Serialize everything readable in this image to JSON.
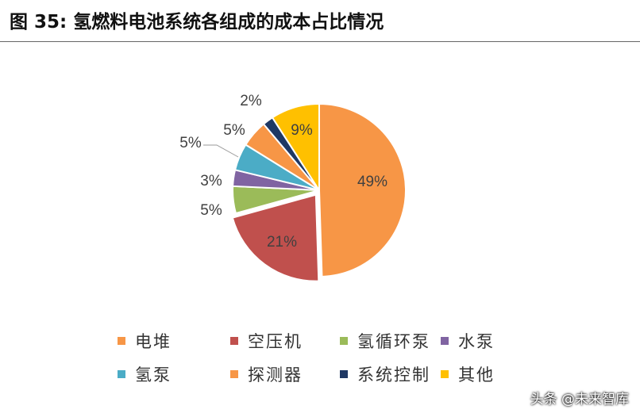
{
  "title": "图 35:  氢燃料电池系统各组成的成本占比情况",
  "watermark": "头条 @未来智库",
  "chart_data": {
    "type": "pie",
    "title": "",
    "slices": [
      {
        "label": "电堆",
        "value": 49,
        "display": "49%",
        "color": "#F79646"
      },
      {
        "label": "空压机",
        "value": 21,
        "display": "21%",
        "color": "#C0504D"
      },
      {
        "label": "氢循环泵",
        "value": 5,
        "display": "5%",
        "color": "#9BBB59"
      },
      {
        "label": "水泵",
        "value": 3,
        "display": "3%",
        "color": "#8064A2"
      },
      {
        "label": "氢泵",
        "value": 5,
        "display": "5%",
        "color": "#4BACC6"
      },
      {
        "label": "探测器",
        "value": 5,
        "display": "5%",
        "color": "#F79646"
      },
      {
        "label": "系统控制",
        "value": 2,
        "display": "2%",
        "color": "#1F3864"
      },
      {
        "label": "其他",
        "value": 9,
        "display": "9%",
        "color": "#FFC000"
      }
    ],
    "legend_position": "bottom",
    "start_angle": "top, clockwise"
  }
}
